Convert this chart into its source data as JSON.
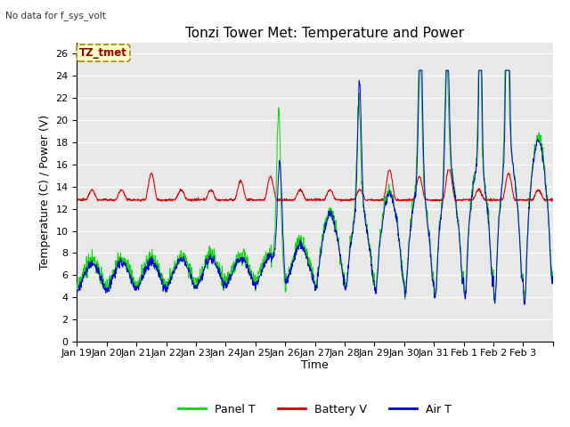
{
  "title": "Tonzi Tower Met: Temperature and Power",
  "ylabel": "Temperature (C) / Power (V)",
  "xlabel": "Time",
  "top_left_text": "No data for f_sys_volt",
  "annotation_box": "TZ_tmet",
  "ylim": [
    0,
    27
  ],
  "yticks": [
    0,
    2,
    4,
    6,
    8,
    10,
    12,
    14,
    16,
    18,
    20,
    22,
    24,
    26
  ],
  "xtick_labels": [
    "Jan 19",
    "Jan 20",
    "Jan 21",
    "Jan 22",
    "Jan 23",
    "Jan 24",
    "Jan 25",
    "Jan 26",
    "Jan 27",
    "Jan 28",
    "Jan 29",
    "Jan 30",
    "Jan 31",
    "Feb 1",
    "Feb 2",
    "Feb 3"
  ],
  "bg_color": "#e8e8e8",
  "panel_color": "#00dd00",
  "battery_color": "#dd0000",
  "air_color": "#0000dd",
  "legend_labels": [
    "Panel T",
    "Battery V",
    "Air T"
  ],
  "title_fontsize": 11,
  "axis_fontsize": 9,
  "tick_fontsize": 8
}
